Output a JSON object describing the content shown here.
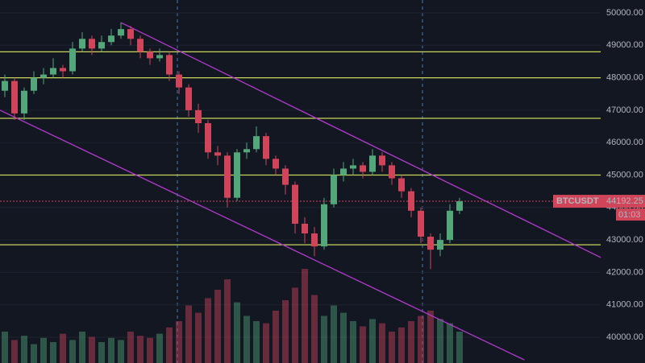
{
  "chart_data": {
    "type": "candlestick",
    "symbol": "BTCUSDT",
    "last_price": 44192.25,
    "countdown": "01:03",
    "ylim": [
      39206,
      50397
    ],
    "yticks": [
      {
        "value": 40000,
        "label": "40000.00"
      },
      {
        "value": 41000,
        "label": "41000.00"
      },
      {
        "value": 42000,
        "label": "42000.00"
      },
      {
        "value": 43000,
        "label": "43000.00"
      },
      {
        "value": 44000,
        "label": "44000.00"
      },
      {
        "value": 45000,
        "label": "45000.00"
      },
      {
        "value": 46000,
        "label": "46000.00"
      },
      {
        "value": 47000,
        "label": "47000.00"
      },
      {
        "value": 48000,
        "label": "48000.00"
      },
      {
        "value": 49000,
        "label": "49000.00"
      },
      {
        "value": 50000,
        "label": "50000.00"
      }
    ],
    "grid": true,
    "up_color": "#53a77a",
    "down_color": "#d0455a",
    "level_color": "#c8d45a",
    "trend_color": "#b43ad0",
    "open": [
      47600,
      47900,
      46900,
      47600,
      48000,
      48100,
      48300,
      48200,
      48900,
      49200,
      48900,
      49100,
      49300,
      49500,
      49200,
      48800,
      48600,
      48700,
      48100,
      47700,
      47000,
      46600,
      45700,
      45600,
      44300,
      45700,
      45800,
      46200,
      45500,
      45200,
      44700,
      43500,
      43200,
      42800,
      44100,
      45000,
      45200,
      45300,
      45100,
      45600,
      45300,
      44900,
      44500,
      43900,
      43100,
      42700,
      43000,
      43900
    ],
    "high": [
      48100,
      48000,
      47700,
      48200,
      48300,
      48600,
      48400,
      49100,
      49400,
      49300,
      49300,
      49500,
      49700,
      49600,
      49300,
      48900,
      48900,
      48800,
      48200,
      47800,
      47200,
      46700,
      45900,
      45700,
      45800,
      46000,
      46500,
      46300,
      45600,
      45300,
      44800,
      43700,
      43400,
      44300,
      45200,
      45400,
      45500,
      45400,
      45800,
      45700,
      45400,
      45000,
      44600,
      44000,
      43200,
      43200,
      44100,
      44300
    ],
    "low": [
      47400,
      46700,
      46700,
      47500,
      47800,
      48000,
      48000,
      48100,
      48800,
      48700,
      48800,
      49000,
      49200,
      49000,
      48600,
      48400,
      48500,
      47900,
      47500,
      46800,
      46300,
      45500,
      45300,
      44000,
      44200,
      45500,
      45700,
      45300,
      45000,
      44400,
      43200,
      42900,
      42500,
      42700,
      44000,
      44800,
      45000,
      44900,
      45000,
      45100,
      44700,
      44300,
      43700,
      42900,
      42100,
      42500,
      42900,
      43800
    ],
    "close": [
      47900,
      46900,
      47600,
      48000,
      48100,
      48300,
      48200,
      48900,
      49200,
      48900,
      49100,
      49300,
      49500,
      49200,
      48800,
      48600,
      48700,
      48100,
      47700,
      47000,
      46600,
      45700,
      45600,
      44300,
      45700,
      45800,
      46200,
      45500,
      45200,
      44700,
      43500,
      43200,
      42800,
      44100,
      45000,
      45200,
      45300,
      45100,
      45600,
      45300,
      44900,
      44500,
      43900,
      43100,
      42700,
      43000,
      43900,
      44192.25
    ],
    "vlim": [
      0,
      100
    ],
    "volume": [
      30,
      22,
      26,
      18,
      24,
      20,
      28,
      22,
      30,
      25,
      20,
      24,
      22,
      30,
      26,
      24,
      28,
      34,
      40,
      55,
      48,
      62,
      70,
      80,
      58,
      45,
      40,
      38,
      50,
      60,
      72,
      90,
      65,
      45,
      55,
      48,
      40,
      35,
      42,
      38,
      30,
      34,
      40,
      45,
      50,
      42,
      38,
      30
    ],
    "levels": [
      48800,
      48000,
      46750,
      45000,
      42850
    ],
    "trendlines": [
      {
        "x": [
          12,
          62
        ],
        "y": [
          49700,
          42400
        ]
      },
      {
        "x": [
          -0.5,
          53.7
        ],
        "y": [
          47000,
          39300
        ]
      }
    ]
  }
}
